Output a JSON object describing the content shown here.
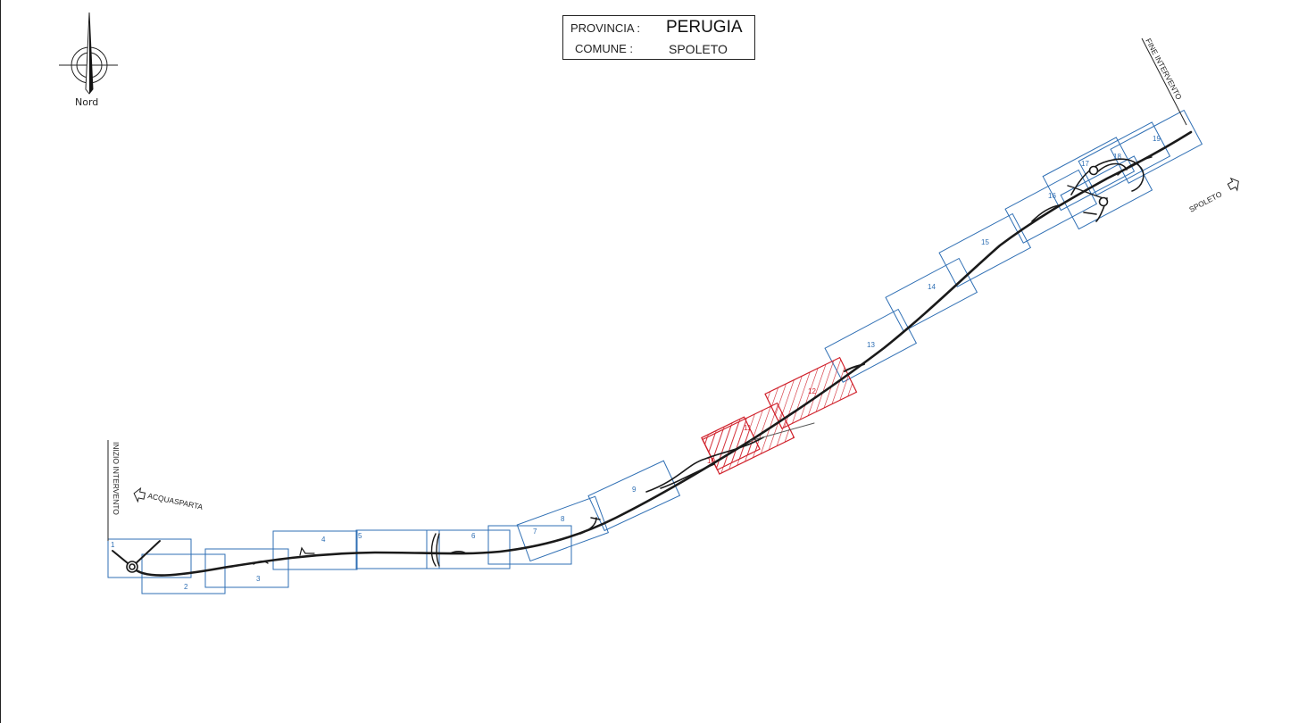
{
  "header": {
    "provincia_label": "PROVINCIA :",
    "provincia_value": "PERUGIA",
    "comune_label": "COMUNE :",
    "comune_value": "SPOLETO"
  },
  "north_arrow": {
    "icon": "north-arrow-icon",
    "label": "Nord"
  },
  "markers": {
    "start_label": "INIZIO INTERVENTO",
    "end_label": "FINE INTERVENTO"
  },
  "directions": {
    "west": "ACQUASPARTA",
    "east": "SPOLETO"
  },
  "tiles": {
    "labels": [
      "1",
      "2",
      "3",
      "4",
      "5",
      "6",
      "7",
      "8",
      "9",
      "10",
      "11",
      "12",
      "13",
      "14",
      "15",
      "16",
      "17",
      "18",
      "19"
    ],
    "highlighted": [
      "10",
      "11",
      "12"
    ],
    "colors": {
      "normal": "#2f6fb4",
      "highlighted": "#d0202a",
      "road": "#1a1a1a"
    }
  }
}
